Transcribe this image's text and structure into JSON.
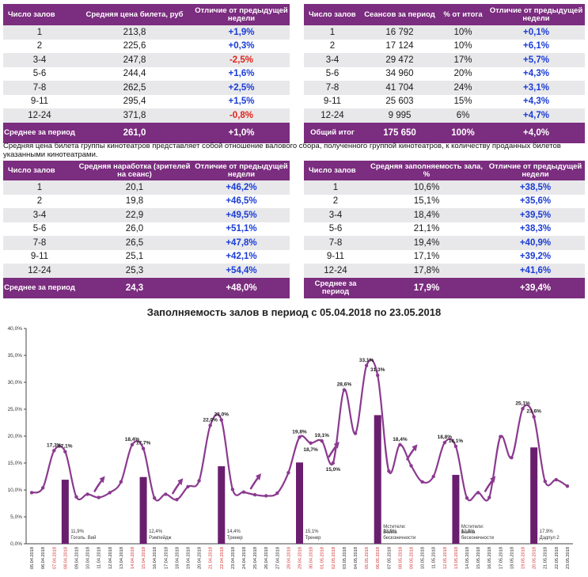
{
  "table1": {
    "headers": [
      "Число залов",
      "Средняя цена билета, руб",
      "Отличие от предыдущей недели"
    ],
    "rows": [
      {
        "c": "1",
        "v": "213,8",
        "d": "+1,9%",
        "t": "pos"
      },
      {
        "c": "2",
        "v": "225,6",
        "d": "+0,3%",
        "t": "pos"
      },
      {
        "c": "3-4",
        "v": "247,8",
        "d": "-2,5%",
        "t": "neg"
      },
      {
        "c": "5-6",
        "v": "244,4",
        "d": "+1,6%",
        "t": "pos"
      },
      {
        "c": "7-8",
        "v": "262,5",
        "d": "+2,5%",
        "t": "pos"
      },
      {
        "c": "9-11",
        "v": "295,4",
        "d": "+1,5%",
        "t": "pos"
      },
      {
        "c": "12-24",
        "v": "371,8",
        "d": "-0,8%",
        "t": "neg"
      }
    ],
    "footer": [
      "Среднее за период",
      "261,0",
      "+1,0%"
    ]
  },
  "table2": {
    "headers": [
      "Число залов",
      "Сеансов за период",
      "% от итога",
      "Отличие от предыдущей недели"
    ],
    "rows": [
      {
        "c": "1",
        "v": "16 792",
        "p": "10%",
        "d": "+0,1%"
      },
      {
        "c": "2",
        "v": "17 124",
        "p": "10%",
        "d": "+6,1%"
      },
      {
        "c": "3-4",
        "v": "29 472",
        "p": "17%",
        "d": "+5,7%"
      },
      {
        "c": "5-6",
        "v": "34 960",
        "p": "20%",
        "d": "+4,3%"
      },
      {
        "c": "7-8",
        "v": "41 704",
        "p": "24%",
        "d": "+3,1%"
      },
      {
        "c": "9-11",
        "v": "25 603",
        "p": "15%",
        "d": "+4,3%"
      },
      {
        "c": "12-24",
        "v": "9 995",
        "p": "6%",
        "d": "+4,7%"
      }
    ],
    "footer": [
      "Общий итог",
      "175 650",
      "100%",
      "+4,0%"
    ]
  },
  "note": "Средняя цена билета группы кинотеатров представляет собой отношение валового сбора, полученного группой кинотеатров, к количеству проданных билетов указанными кинотеатрами.",
  "table3": {
    "headers": [
      "Число залов",
      "Средняя наработка (зрителей на сеанс)",
      "Отличие от предыдущей недели"
    ],
    "rows": [
      {
        "c": "1",
        "v": "20,1",
        "d": "+46,2%"
      },
      {
        "c": "2",
        "v": "19,8",
        "d": "+46,5%"
      },
      {
        "c": "3-4",
        "v": "22,9",
        "d": "+49,5%"
      },
      {
        "c": "5-6",
        "v": "26,0",
        "d": "+51,1%"
      },
      {
        "c": "7-8",
        "v": "26,5",
        "d": "+47,8%"
      },
      {
        "c": "9-11",
        "v": "25,1",
        "d": "+42,1%"
      },
      {
        "c": "12-24",
        "v": "25,3",
        "d": "+54,4%"
      }
    ],
    "footer": [
      "Среднее за период",
      "24,3",
      "+48,0%"
    ]
  },
  "table4": {
    "headers": [
      "Число залов",
      "Средняя заполняемость зала, %",
      "Отличие от предыдущей недели"
    ],
    "rows": [
      {
        "c": "1",
        "v": "10,6%",
        "d": "+38,5%"
      },
      {
        "c": "2",
        "v": "15,1%",
        "d": "+35,6%"
      },
      {
        "c": "3-4",
        "v": "18,4%",
        "d": "+39,5%"
      },
      {
        "c": "5-6",
        "v": "21,1%",
        "d": "+38,3%"
      },
      {
        "c": "7-8",
        "v": "19,4%",
        "d": "+40,9%"
      },
      {
        "c": "9-11",
        "v": "17,1%",
        "d": "+39,2%"
      },
      {
        "c": "12-24",
        "v": "17,8%",
        "d": "+41,6%"
      }
    ],
    "footer": [
      "Среднее за период",
      "17,9%",
      "+39,4%"
    ]
  },
  "chart_data": {
    "type": "line",
    "title": "Заполняемость залов в период с 05.04.2018 по 23.05.2018",
    "ylim": [
      0,
      40
    ],
    "yticks": [
      "0,0%",
      "5,0%",
      "10,0%",
      "15,0%",
      "20,0%",
      "25,0%",
      "30,0%",
      "35,0%",
      "40,0%"
    ],
    "x": [
      "05.04.2018",
      "06.04.2018",
      "07.04.2018",
      "08.04.2018",
      "09.04.2018",
      "10.04.2018",
      "11.04.2018",
      "12.04.2018",
      "13.04.2018",
      "14.04.2018",
      "15.04.2018",
      "16.04.2018",
      "17.04.2018",
      "18.04.2018",
      "19.04.2018",
      "20.04.2018",
      "21.04.2018",
      "22.04.2018",
      "23.04.2018",
      "24.04.2018",
      "25.04.2018",
      "26.04.2018",
      "27.04.2018",
      "28.04.2018",
      "29.04.2018",
      "30.04.2018",
      "01.05.2018",
      "02.05.2018",
      "03.05.2018",
      "04.05.2018",
      "05.05.2018",
      "06.05.2018",
      "07.05.2018",
      "08.05.2018",
      "09.05.2018",
      "10.05.2018",
      "11.05.2018",
      "12.05.2018",
      "13.05.2018",
      "14.05.2018",
      "15.05.2018",
      "16.05.2018",
      "17.05.2018",
      "18.05.2018",
      "19.05.2018",
      "20.05.2018",
      "21.05.2018",
      "22.05.2018",
      "23.05.2018"
    ],
    "weekend_indices": [
      2,
      3,
      9,
      10,
      16,
      17,
      23,
      24,
      25,
      26,
      27,
      30,
      31,
      33,
      34,
      37,
      38,
      44,
      45
    ],
    "values": [
      9.5,
      10.4,
      17.3,
      17.1,
      8.7,
      9.2,
      8.6,
      9.5,
      11.5,
      18.4,
      17.7,
      8.5,
      9.2,
      8.2,
      10.6,
      11.7,
      22.0,
      23.0,
      10.1,
      9.6,
      9.1,
      8.9,
      9.4,
      13.2,
      19.8,
      18.7,
      19.1,
      15.0,
      28.6,
      20.5,
      33.1,
      31.3,
      13.5,
      18.4,
      14.5,
      11.5,
      12.5,
      18.8,
      18.1,
      8.5,
      9.5,
      8.6,
      19.9,
      16.0,
      25.1,
      23.6,
      11.6,
      11.9,
      10.7
    ],
    "labels": [
      {
        "i": 2,
        "text": "17,3%"
      },
      {
        "i": 3,
        "text": "17,1%"
      },
      {
        "i": 9,
        "text": "18,4%"
      },
      {
        "i": 10,
        "text": "17,7%"
      },
      {
        "i": 16,
        "text": "22,0%"
      },
      {
        "i": 17,
        "text": "23,0%"
      },
      {
        "i": 24,
        "text": "19,8%"
      },
      {
        "i": 25,
        "text": "18,7%"
      },
      {
        "i": 26,
        "text": "19,1%"
      },
      {
        "i": 27,
        "text": "15,0%"
      },
      {
        "i": 28,
        "text": "28,6%"
      },
      {
        "i": 30,
        "text": "33,1%"
      },
      {
        "i": 31,
        "text": "31,3%"
      },
      {
        "i": 33,
        "text": "18,4%"
      },
      {
        "i": 37,
        "text": "18,8%"
      },
      {
        "i": 38,
        "text": "18,1%"
      },
      {
        "i": 44,
        "text": "25,1%"
      },
      {
        "i": 45,
        "text": "23,6%"
      }
    ],
    "bars": [
      {
        "i": 3,
        "value": 11.9,
        "label": "11,9%",
        "film": "Гоголь. Вий"
      },
      {
        "i": 10,
        "value": 12.4,
        "label": "12,4%",
        "film": "Рэмпейдж"
      },
      {
        "i": 17,
        "value": 14.4,
        "label": "14,4%",
        "film": "Тренер"
      },
      {
        "i": 24,
        "value": 15.1,
        "label": "15,1%",
        "film": "Тренер"
      },
      {
        "i": 31,
        "value": 23.9,
        "label": "23,9%",
        "film": "Мстители: Война бесконечности"
      },
      {
        "i": 38,
        "value": 12.8,
        "label": "12,8%",
        "film": "Мстители: Война бесконечности"
      },
      {
        "i": 45,
        "value": 17.9,
        "label": "17,9%",
        "film": "Дэдпул 2"
      }
    ],
    "arrow_indices": [
      6,
      13,
      20,
      27,
      34,
      41
    ],
    "colors": {
      "line": "#8b3a8f",
      "bar": "#6a1f6e",
      "weekend": "#d0312d",
      "axis": "#444444",
      "grid": "#cccccc"
    }
  }
}
